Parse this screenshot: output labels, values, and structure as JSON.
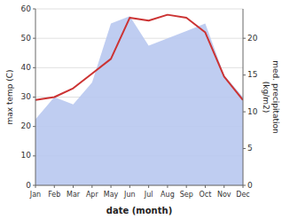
{
  "chart_data": {
    "type": "line",
    "categories": [
      "Jan",
      "Feb",
      "Mar",
      "Apr",
      "May",
      "Jun",
      "Jul",
      "Aug",
      "Sep",
      "Oct",
      "Nov",
      "Dec"
    ],
    "series": [
      {
        "type": "area",
        "color": "#b8c8f0",
        "axis": "y2",
        "values": [
          9,
          12,
          11,
          14,
          22,
          23,
          19,
          20,
          21,
          22,
          15,
          12
        ]
      },
      {
        "type": "line",
        "color": "#cc3333",
        "values": [
          29,
          30,
          33,
          38,
          43,
          57,
          56,
          58,
          57,
          52,
          37,
          29
        ]
      }
    ],
    "xlabel": "date (month)",
    "ylabel": "max temp (C)",
    "y2label": "med. precipitation\n(kg/m2)",
    "ylim": [
      0,
      60
    ],
    "yticks": [
      0,
      10,
      20,
      30,
      40,
      50,
      60
    ],
    "y2lim": [
      0,
      24
    ],
    "y2ticks": [
      0,
      5,
      10,
      15,
      20
    ],
    "grid": true
  }
}
